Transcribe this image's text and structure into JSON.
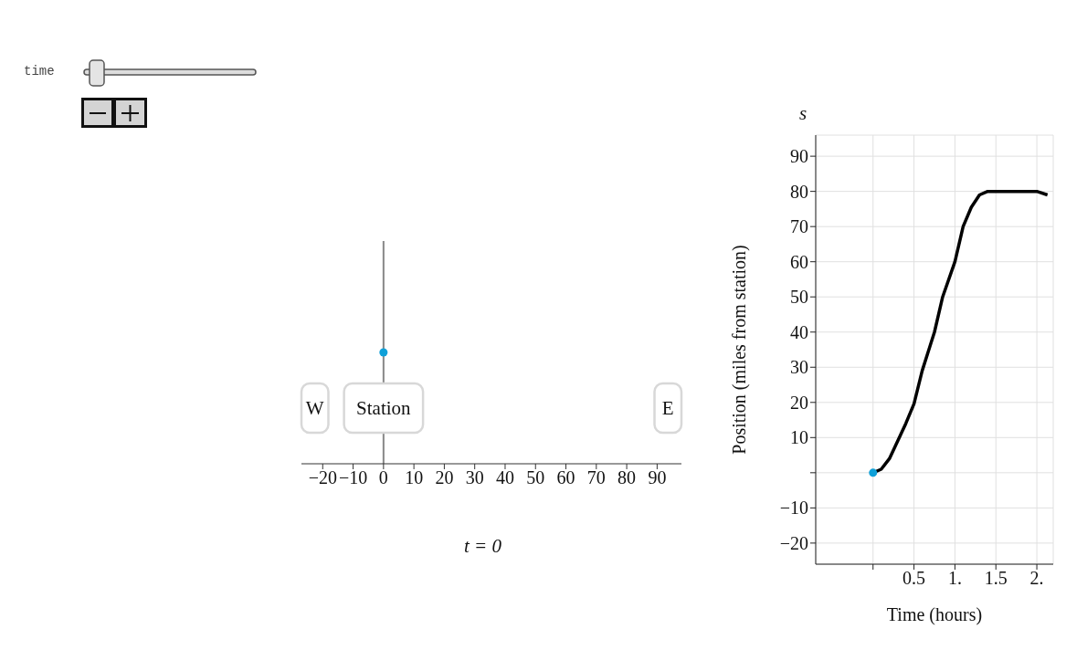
{
  "chart_data": [
    {
      "type": "scatter",
      "orientation": "horizontal",
      "categories": [
        null
      ],
      "values": [
        0
      ],
      "color": "#0fa0d8",
      "xlim": [
        -27,
        98
      ],
      "xticks": [
        {
          "value": -20,
          "label": "−20"
        },
        {
          "value": -10,
          "label": "−10"
        },
        0,
        10,
        20,
        30,
        40,
        50,
        60,
        70,
        80,
        90
      ],
      "tick_labels": "x",
      "marker": "circle",
      "ref_lines": [
        {
          "axis": "x",
          "value": 0,
          "color": "#888888"
        }
      ],
      "annotations": [
        "W",
        {
          "text": "Station",
          "x": 0
        },
        "E",
        "t = 0",
        "time"
      ]
    },
    {
      "type": "line",
      "xlabel": "Time (hours)",
      "ylabel": "Position (miles from station)",
      "xlim": [
        -0.7,
        2.2
      ],
      "ylim": [
        -26,
        96
      ],
      "xticks": [
        {
          "value": 0,
          "label": null
        },
        0.5,
        {
          "value": 1,
          "label": "1."
        },
        1.5,
        {
          "value": 2,
          "label": "2."
        }
      ],
      "yticks": [
        {
          "value": -20,
          "label": "−20"
        },
        {
          "value": -10,
          "label": "−10"
        },
        {
          "value": 0,
          "label": null
        },
        10,
        20,
        30,
        40,
        50,
        60,
        70,
        80,
        90
      ],
      "grid": true,
      "line_style": "solid",
      "annotations": [
        "s"
      ],
      "series": [
        {
          "type": "line",
          "color": "#000000",
          "x": [
            0,
            0.1,
            0.2,
            0.3,
            0.4,
            0.5,
            0.6,
            0.75,
            0.85,
            1.0,
            1.1,
            1.2,
            1.3,
            1.4,
            1.5,
            2.0,
            2.13
          ],
          "values": [
            0,
            1,
            4,
            9,
            14,
            19.6,
            29,
            40,
            50,
            60,
            70,
            75.5,
            79,
            80,
            80,
            80,
            79
          ]
        },
        {
          "type": "scatter",
          "color": "#0fa0d8",
          "x": [
            0
          ],
          "values": [
            0
          ]
        }
      ]
    }
  ]
}
